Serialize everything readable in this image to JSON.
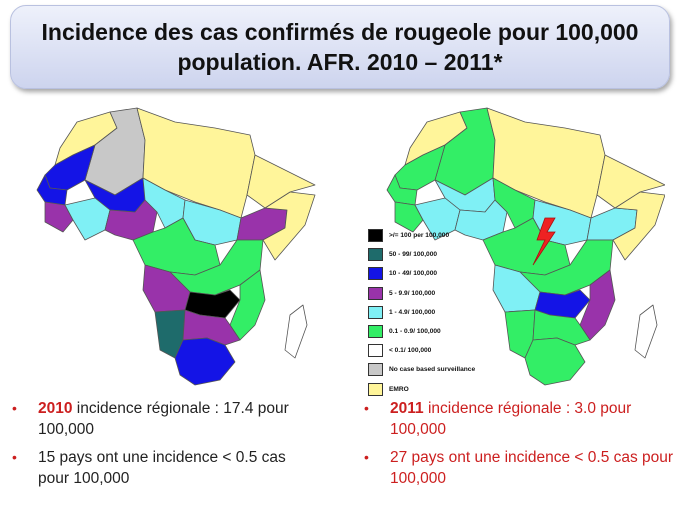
{
  "title": "Incidence des cas confirmés de rougeole pour 100,000 population. AFR. 2010 – 2011*",
  "colors": {
    "ge100": "#000000",
    "c50_99": "#1e6b6b",
    "c10_49": "#1414e6",
    "c5_9": "#9933aa",
    "c1_4": "#7ff0f5",
    "c01_09": "#33ee66",
    "lt01": "#ffffff",
    "nosurv": "#c8c8c8",
    "emro": "#fff59a",
    "sea": "#ffffff",
    "highlight": "#ee2222"
  },
  "legend": [
    {
      "label": ">/= 100 per 100,000",
      "color": "#000000"
    },
    {
      "label": "50 - 99/ 100,000",
      "color": "#1e6b6b"
    },
    {
      "label": "10 - 49/ 100,000",
      "color": "#1414e6"
    },
    {
      "label": "5 - 9.9/ 100,000",
      "color": "#9933aa"
    },
    {
      "label": "1 - 4.9/ 100,000",
      "color": "#7ff0f5"
    },
    {
      "label": "0.1 - 0.9/ 100,000",
      "color": "#33ee66"
    },
    {
      "label": "< 0.1/ 100,000",
      "color": "#ffffff"
    },
    {
      "label": "No case based surveillance",
      "color": "#c8c8c8"
    },
    {
      "label": "EMRO",
      "color": "#fff59a"
    }
  ],
  "bullets_2010": {
    "b1_year": "2010",
    "b1_text": " incidence régionale : 17.4 pour 100,000",
    "b2_text": "15 pays ont une incidence < 0.5 cas pour 100,000"
  },
  "bullets_2011": {
    "b1_year": "2011",
    "b1_text": " incidence régionale : 3.0 pour 100,000",
    "b2_text": "27 pays ont une incidence < 0.5 cas pour 100,000"
  },
  "bullet_char": "•"
}
